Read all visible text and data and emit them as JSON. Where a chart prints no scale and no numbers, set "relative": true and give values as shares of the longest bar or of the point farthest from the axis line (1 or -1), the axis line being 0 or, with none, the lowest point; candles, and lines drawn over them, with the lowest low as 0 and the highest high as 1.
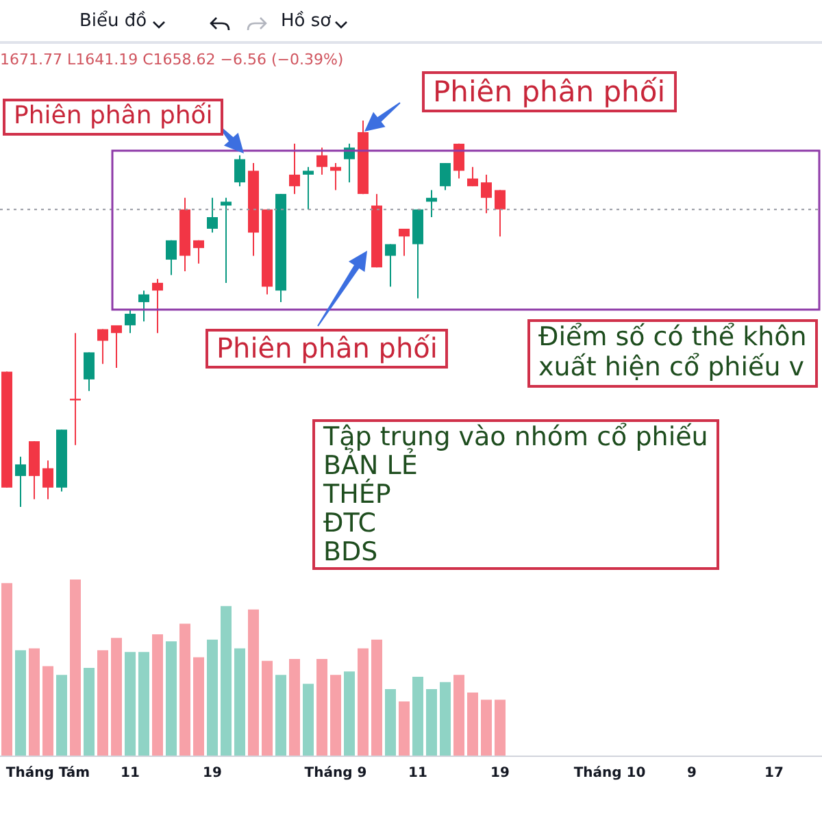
{
  "chart_data": [
    {
      "type": "candlestick",
      "relative": true,
      "tick_labels": false,
      "categories": [
        null,
        null,
        null,
        null,
        null,
        null,
        null,
        null,
        null,
        null,
        null,
        null,
        null,
        null,
        null,
        null,
        null,
        null,
        null,
        null,
        null,
        null,
        null,
        null,
        null,
        null,
        null,
        null,
        null,
        null,
        null,
        null,
        null,
        null,
        null,
        null,
        null,
        null,
        null,
        null,
        null,
        null,
        null,
        null,
        null,
        null,
        null,
        null,
        null,
        null,
        null,
        null,
        null,
        null,
        null,
        null,
        null,
        null,
        null,
        null
      ],
      "ohlc": [
        [
          0.35,
          0.35,
          0.05,
          0.05
        ],
        [
          0.08,
          0.13,
          0,
          0.11
        ],
        [
          0.17,
          0.17,
          0.02,
          0.08
        ],
        [
          0.1,
          0.12,
          0.02,
          0.05
        ],
        [
          0.05,
          0.2,
          0.04,
          0.2
        ],
        [
          0.28,
          0.45,
          0.16,
          0.28
        ],
        [
          0.33,
          0.4,
          0.3,
          0.4
        ],
        [
          0.46,
          0.46,
          0.37,
          0.43
        ],
        [
          0.47,
          0.47,
          0.36,
          0.45
        ],
        [
          0.47,
          0.51,
          0.45,
          0.5
        ],
        [
          0.53,
          0.56,
          0.48,
          0.55
        ],
        [
          0.58,
          0.59,
          0.45,
          0.56
        ],
        [
          0.64,
          0.69,
          0.6,
          0.69
        ],
        [
          0.77,
          0.8,
          0.61,
          0.65
        ],
        [
          0.69,
          0.69,
          0.63,
          0.67
        ],
        [
          0.72,
          0.8,
          0.71,
          0.75
        ],
        [
          0.78,
          0.8,
          0.58,
          0.79
        ],
        [
          0.84,
          0.91,
          0.83,
          0.9
        ],
        [
          0.87,
          0.89,
          0.65,
          0.71
        ],
        [
          0.77,
          0.77,
          0.55,
          0.57
        ],
        [
          0.56,
          0.81,
          0.53,
          0.81
        ],
        [
          0.86,
          0.94,
          0.81,
          0.83
        ],
        [
          0.86,
          0.88,
          0.77,
          0.87
        ],
        [
          0.91,
          0.93,
          0.86,
          0.88
        ],
        [
          0.88,
          0.89,
          0.82,
          0.87
        ],
        [
          0.9,
          0.94,
          0.84,
          0.93
        ],
        [
          0.97,
          1,
          0.81,
          0.81
        ],
        [
          0.78,
          0.81,
          0.62,
          0.62
        ],
        [
          0.65,
          0.68,
          0.57,
          0.68
        ],
        [
          0.72,
          0.72,
          0.65,
          0.7
        ],
        [
          0.68,
          0.77,
          0.54,
          0.77
        ],
        [
          0.79,
          0.82,
          0.75,
          0.8
        ],
        [
          0.83,
          0.89,
          0.82,
          0.89
        ],
        [
          0.94,
          0.94,
          0.85,
          0.87
        ],
        [
          0.85,
          0.88,
          0.83,
          0.83
        ],
        [
          0.84,
          0.86,
          0.76,
          0.8
        ],
        [
          0.82,
          0.82,
          0.7,
          0.77
        ],
        null,
        null,
        null,
        null,
        null,
        null,
        null,
        null,
        null,
        null,
        null,
        null,
        null,
        null,
        null,
        null,
        null,
        null,
        null,
        null,
        null,
        null,
        null
      ],
      "colors": [
        "#f23645",
        "#089981",
        "#f23645",
        "#f23645",
        "#089981",
        "#f23645",
        "#089981",
        "#f23645",
        "#f23645",
        "#089981",
        "#089981",
        "#f23645",
        "#089981",
        "#f23645",
        "#f23645",
        "#089981",
        "#089981",
        "#089981",
        "#f23645",
        "#f23645",
        "#089981",
        "#f23645",
        "#089981",
        "#f23645",
        "#f23645",
        "#089981",
        "#f23645",
        "#f23645",
        "#089981",
        "#f23645",
        "#089981",
        "#089981",
        "#089981",
        "#f23645",
        "#f23645",
        "#f23645",
        "#f23645",
        null,
        null,
        null,
        null,
        null,
        null,
        null,
        null,
        null,
        null,
        null,
        null,
        null,
        null,
        null,
        null,
        null,
        null,
        null,
        null,
        null,
        null,
        null
      ],
      "ref_lines": [
        {
          "axis": "y",
          "value": 0.77,
          "line_style": "dotted",
          "color": "#9598a1"
        }
      ],
      "annotations": [
        "Biểu đồ",
        "Hồ sơ",
        "1671.77 L1641.19 C1658.62 −6.56 (−0.39%)",
        "Phiên phân phối",
        "Phiên phân phối",
        "Phiên phân phối",
        "Điểm số có thể khôn\nxuất hiện cổ phiếu v",
        "Tập trung vào nhóm cổ phiếu\nBẢN LẺ\nTHÉP\nĐTC\nBDS"
      ]
    },
    {
      "type": "bar",
      "relative": true,
      "categories": [
        null,
        null,
        null,
        "Tháng Tám",
        null,
        null,
        null,
        null,
        null,
        "11",
        null,
        null,
        null,
        null,
        null,
        "19",
        null,
        null,
        null,
        null,
        null,
        null,
        null,
        null,
        "Tháng 9",
        null,
        null,
        null,
        null,
        null,
        "11",
        null,
        null,
        null,
        null,
        null,
        "19",
        null,
        null,
        null,
        null,
        null,
        null,
        null,
        "Tháng 10",
        null,
        null,
        null,
        null,
        null,
        "9",
        null,
        null,
        null,
        null,
        null,
        "17",
        null,
        null,
        null
      ],
      "values": [
        0.98,
        0.6,
        0.61,
        0.51,
        0.46,
        1,
        0.5,
        0.6,
        0.67,
        0.59,
        0.59,
        0.69,
        0.65,
        0.75,
        0.56,
        0.66,
        0.85,
        0.61,
        0.83,
        0.54,
        0.46,
        0.55,
        0.41,
        0.55,
        0.46,
        0.48,
        0.61,
        0.66,
        0.38,
        0.31,
        0.45,
        0.38,
        0.42,
        0.46,
        0.36,
        0.32,
        0.32,
        null,
        null,
        null,
        null,
        null,
        null,
        null,
        null,
        null,
        null,
        null,
        null,
        null,
        null,
        null,
        null,
        null,
        null,
        null,
        null,
        null,
        null,
        null
      ],
      "colors": [
        "#f7a1a8",
        "#8fd3c5",
        "#f7a1a8",
        "#f7a1a8",
        "#8fd3c5",
        "#f7a1a8",
        "#8fd3c5",
        "#f7a1a8",
        "#f7a1a8",
        "#8fd3c5",
        "#8fd3c5",
        "#f7a1a8",
        "#8fd3c5",
        "#f7a1a8",
        "#f7a1a8",
        "#8fd3c5",
        "#8fd3c5",
        "#8fd3c5",
        "#f7a1a8",
        "#f7a1a8",
        "#8fd3c5",
        "#f7a1a8",
        "#8fd3c5",
        "#f7a1a8",
        "#f7a1a8",
        "#8fd3c5",
        "#f7a1a8",
        "#f7a1a8",
        "#8fd3c5",
        "#f7a1a8",
        "#8fd3c5",
        "#8fd3c5",
        "#8fd3c5",
        "#f7a1a8",
        "#f7a1a8",
        "#f7a1a8",
        "#f7a1a8",
        null,
        null,
        null,
        null,
        null,
        null,
        null,
        null,
        null,
        null,
        null,
        null,
        null,
        null,
        null,
        null,
        null,
        null,
        null,
        null,
        null,
        null,
        null
      ]
    }
  ]
}
